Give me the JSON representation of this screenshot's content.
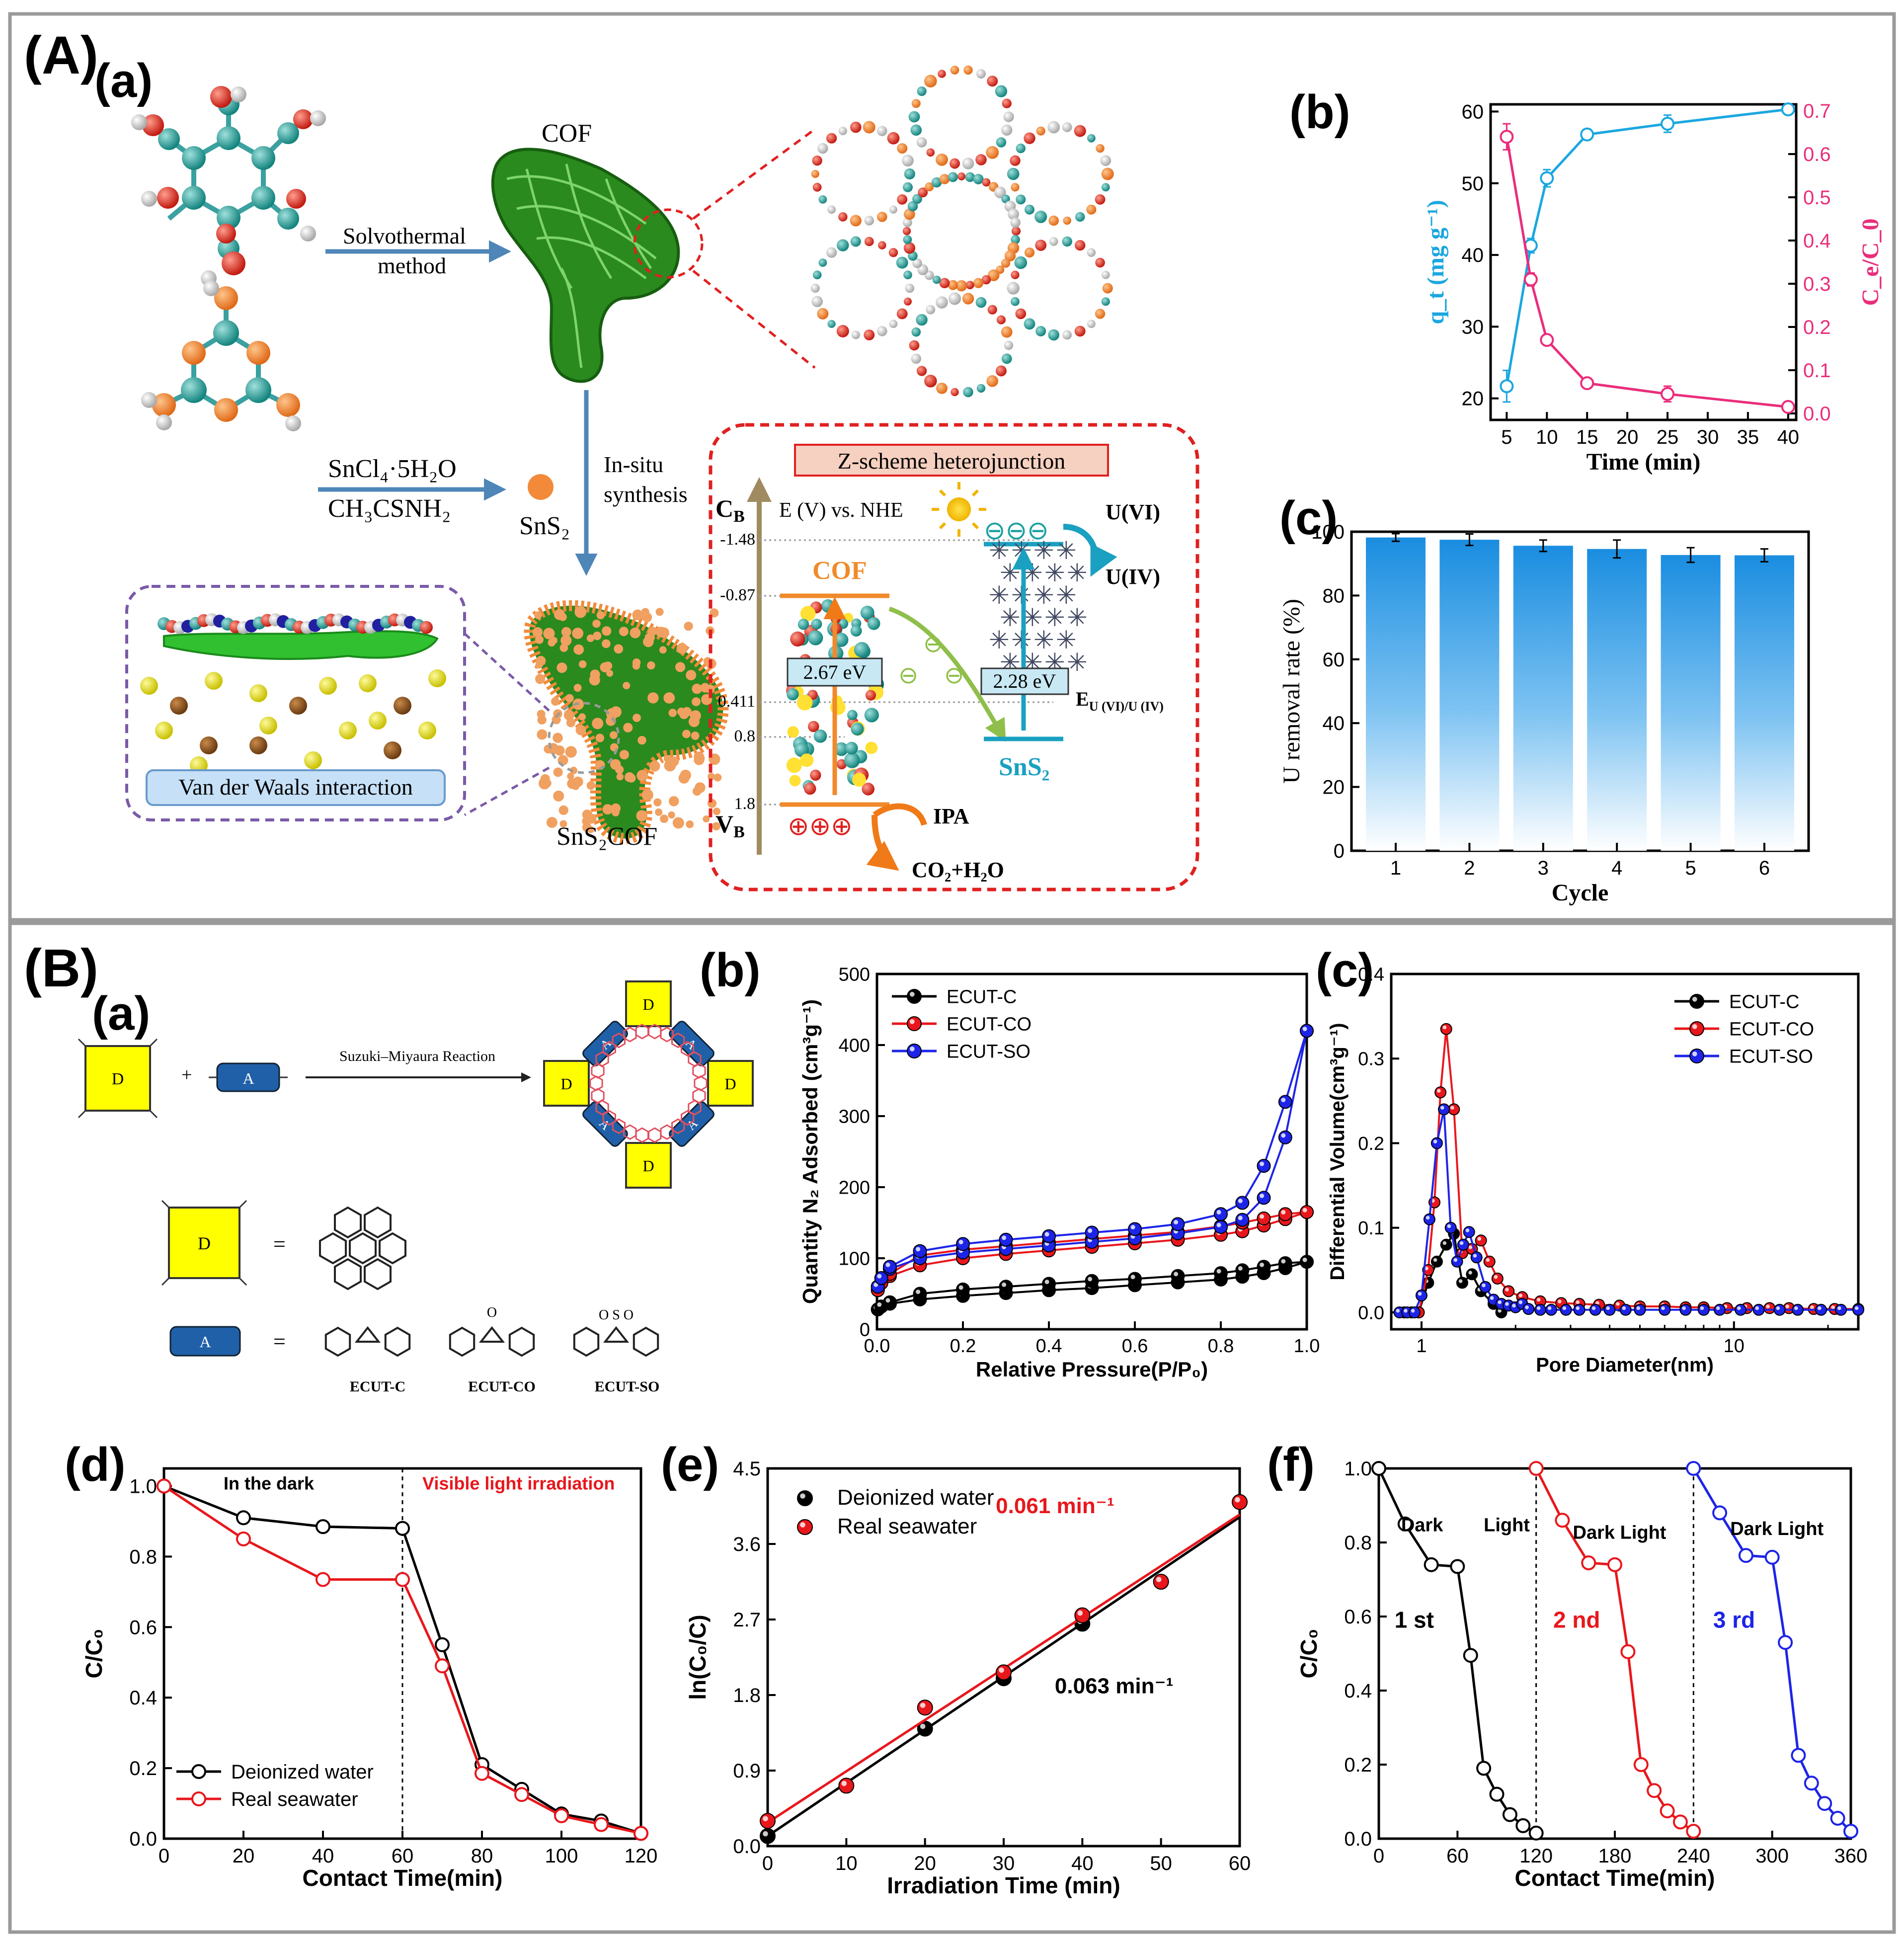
{
  "panel_labels": {
    "A": "(A)",
    "Aa": "(a)",
    "Ab": "(b)",
    "Ac": "(c)",
    "B": "(B)",
    "Ba": "(a)",
    "Bb": "(b)",
    "Bc": "(c)",
    "Bd": "(d)",
    "Be": "(e)",
    "Bf": "(f)"
  },
  "scheme_a": {
    "cof_label": "COF",
    "solvothermal_1": "Solvothermal",
    "solvothermal_2": "method",
    "reagent_1": "SnCl₄·5H₂O",
    "reagent_2": "CH₃CSNH₂",
    "sns2_label": "SnS₂",
    "insitu_1": "In-situ",
    "insitu_2": "synthesis",
    "vdw_label": "Van der Waals interaction",
    "sns2cof_label": "SnS₂COF",
    "zscheme_title": "Z-scheme heterojunction",
    "cb_label": "C_B",
    "vb_label": "V_B",
    "energy_axis": "E (V) vs. NHE",
    "energy_ticks": [
      "-1.48",
      "-0.87",
      "0.411",
      "0.8",
      "1.8"
    ],
    "cof_band": "COF",
    "cof_gap": "2.67 eV",
    "sns2_gap": "2.28 eV",
    "sns2_band": "SnS₂",
    "u6": "U(VI)",
    "u4": "U(IV)",
    "redox": "E U (VI)/U (IV)",
    "ipa": "IPA",
    "products": "CO₂+H₂O",
    "holes": "⊕⊕⊕",
    "electrons": "⊖⊖⊖"
  },
  "scheme_b": {
    "reaction": "Suzuki–Miyaura Reaction",
    "donor": "D",
    "acceptor": "A",
    "plus": "+",
    "equals": "=",
    "products": [
      "ECUT-C",
      "ECUT-CO",
      "ECUT-SO"
    ]
  },
  "chart_data": [
    {
      "id": "A_b",
      "type": "line",
      "title": "",
      "xlabel": "Time (min)",
      "ylabel_left": "q_t (mg g⁻¹)",
      "ylabel_right": "C_e/C_0",
      "xlim": [
        3,
        41
      ],
      "ylim_left": [
        17,
        61
      ],
      "ylim_right": [
        -0.015,
        0.715
      ],
      "x_ticks": [
        5,
        10,
        15,
        20,
        25,
        30,
        35,
        40
      ],
      "y_left_ticks": [
        20,
        30,
        40,
        50,
        60
      ],
      "y_right_ticks": [
        0.0,
        0.1,
        0.2,
        0.3,
        0.4,
        0.5,
        0.6,
        0.7
      ],
      "series": [
        {
          "name": "q_t",
          "axis": "left",
          "color": "#1ba7e0",
          "x": [
            5,
            8,
            10,
            15,
            25,
            40
          ],
          "y": [
            21.7,
            41.3,
            50.7,
            56.8,
            58.3,
            60.3
          ],
          "err": [
            2.2,
            1.0,
            1.2,
            0.6,
            1.2,
            0.3
          ]
        },
        {
          "name": "C_e/C_0",
          "axis": "right",
          "color": "#ea2d7b",
          "x": [
            5,
            8,
            10,
            15,
            25,
            40
          ],
          "y": [
            0.64,
            0.31,
            0.17,
            0.07,
            0.045,
            0.015
          ],
          "err": [
            0.03,
            0.015,
            0.012,
            0.006,
            0.018,
            0.005
          ]
        }
      ]
    },
    {
      "id": "A_c",
      "type": "bar",
      "xlabel": "Cycle",
      "ylabel": "U removal rate (%)",
      "ylim": [
        0,
        100
      ],
      "categories": [
        "1",
        "2",
        "3",
        "4",
        "5",
        "6"
      ],
      "values": [
        98.2,
        97.5,
        95.6,
        94.6,
        92.7,
        92.6
      ],
      "err": [
        1.2,
        1.8,
        1.8,
        2.8,
        2.3,
        2.0
      ],
      "y_ticks": [
        0,
        20,
        40,
        60,
        80,
        100
      ],
      "color": "#1a8de0"
    },
    {
      "id": "B_b",
      "type": "line",
      "xlabel": "Relative Pressure(P/P₀)",
      "ylabel": "Quantity N₂ Adsorbed (cm³g⁻¹)",
      "xlim": [
        0,
        1
      ],
      "ylim": [
        0,
        500
      ],
      "x_ticks": [
        "0.0",
        "0.2",
        "0.4",
        "0.6",
        "0.8",
        "1.0"
      ],
      "y_ticks": [
        0,
        100,
        200,
        300,
        400,
        500
      ],
      "legend": "top-left",
      "series": [
        {
          "name": "ECUT-C",
          "color": "#000000",
          "x": [
            0.002,
            0.01,
            0.03,
            0.1,
            0.2,
            0.3,
            0.4,
            0.5,
            0.6,
            0.7,
            0.8,
            0.85,
            0.9,
            0.95,
            1.0
          ],
          "ads": [
            28,
            32,
            36,
            42,
            47,
            51,
            55,
            58,
            62,
            66,
            70,
            74,
            79,
            86,
            95
          ],
          "des": [
            28,
            32,
            38,
            50,
            56,
            60,
            64,
            68,
            71,
            75,
            79,
            83,
            88,
            93,
            95
          ]
        },
        {
          "name": "ECUT-CO",
          "color": "#e8171c",
          "x": [
            0.002,
            0.01,
            0.03,
            0.1,
            0.2,
            0.3,
            0.4,
            0.5,
            0.6,
            0.7,
            0.8,
            0.85,
            0.9,
            0.95,
            1.0
          ],
          "ads": [
            55,
            65,
            75,
            90,
            100,
            106,
            111,
            116,
            121,
            126,
            133,
            138,
            146,
            155,
            165
          ],
          "des": [
            55,
            65,
            78,
            104,
            112,
            117,
            122,
            127,
            132,
            137,
            145,
            150,
            156,
            162,
            165
          ]
        },
        {
          "name": "ECUT-SO",
          "color": "#1d24e8",
          "x": [
            0.002,
            0.01,
            0.03,
            0.1,
            0.2,
            0.3,
            0.4,
            0.5,
            0.6,
            0.7,
            0.8,
            0.85,
            0.9,
            0.95,
            1.0
          ],
          "ads": [
            60,
            72,
            85,
            100,
            108,
            113,
            118,
            123,
            128,
            135,
            144,
            154,
            185,
            270,
            420
          ],
          "des": [
            60,
            72,
            88,
            110,
            120,
            126,
            131,
            136,
            141,
            148,
            162,
            178,
            230,
            320,
            420
          ]
        }
      ]
    },
    {
      "id": "B_c",
      "type": "line",
      "xscale": "log",
      "xlabel": "Pore Diameter(nm)",
      "ylabel": "Differential Volume(cm³g⁻¹)",
      "xlim": [
        0.8,
        25
      ],
      "ylim": [
        -0.02,
        0.4
      ],
      "x_ticks": [
        "1",
        "10"
      ],
      "y_ticks": [
        "0.0",
        "0.1",
        "0.2",
        "0.3",
        "0.4"
      ],
      "legend": "top-right",
      "series": [
        {
          "name": "ECUT-C",
          "color": "#000000",
          "x": [
            0.88,
            0.93,
            0.98,
            1.05,
            1.12,
            1.2,
            1.27,
            1.35,
            1.45,
            1.55,
            1.7,
            1.8
          ],
          "y": [
            0,
            0,
            0,
            0.035,
            0.06,
            0.08,
            0.093,
            0.035,
            0.045,
            0.025,
            0.01,
            0
          ]
        },
        {
          "name": "ECUT-CO",
          "color": "#e8171c",
          "x": [
            0.88,
            0.93,
            0.98,
            1.05,
            1.1,
            1.15,
            1.2,
            1.27,
            1.35,
            1.45,
            1.55,
            1.65,
            1.75,
            1.9,
            2.1,
            2.4,
            2.8,
            3.2,
            3.7,
            4.3,
            5,
            6,
            7,
            8,
            9.5,
            11,
            13,
            15,
            18,
            21,
            25
          ],
          "y": [
            0,
            0,
            0,
            0.05,
            0.13,
            0.26,
            0.335,
            0.24,
            0.07,
            0.075,
            0.085,
            0.06,
            0.04,
            0.025,
            0.018,
            0.013,
            0.011,
            0.01,
            0.009,
            0.008,
            0.007,
            0.007,
            0.006,
            0.006,
            0.005,
            0.005,
            0.005,
            0.005,
            0.004,
            0.004,
            0.004
          ]
        },
        {
          "name": "ECUT-SO",
          "color": "#1d24e8",
          "x": [
            0.85,
            0.9,
            0.95,
            1.0,
            1.06,
            1.12,
            1.18,
            1.24,
            1.3,
            1.36,
            1.42,
            1.5,
            1.6,
            1.7,
            1.8,
            1.9,
            2.0,
            2.1,
            2.2,
            2.4,
            2.6,
            2.9,
            3.2,
            3.6,
            4,
            4.5,
            5,
            6,
            7,
            8,
            9,
            10.5,
            12,
            14,
            16,
            19,
            22,
            25
          ],
          "y": [
            0,
            0,
            0,
            0.02,
            0.11,
            0.2,
            0.24,
            0.1,
            0.06,
            0.08,
            0.095,
            0.065,
            0.03,
            0.015,
            0.01,
            0.008,
            0.006,
            0.01,
            0.004,
            0.003,
            0.003,
            0.003,
            0.003,
            0.003,
            0.003,
            0.003,
            0.003,
            0.003,
            0.003,
            0.003,
            0.003,
            0.003,
            0.003,
            0.003,
            0.003,
            0.003,
            0.003,
            0.003
          ]
        }
      ]
    },
    {
      "id": "B_d",
      "type": "line",
      "xlabel": "Contact Time(min)",
      "ylabel": "C/C₀",
      "xlim": [
        0,
        120
      ],
      "ylim": [
        0,
        1.05
      ],
      "x_ticks": [
        0,
        20,
        40,
        60,
        80,
        100,
        120
      ],
      "y_ticks": [
        "0.0",
        "0.2",
        "0.4",
        "0.6",
        "0.8",
        "1.0"
      ],
      "legend": "bottom-left",
      "annotations": [
        "In the dark",
        "Visible light irradiation"
      ],
      "divider_x": 60,
      "series": [
        {
          "name": "Deionized water",
          "color": "#000000",
          "x": [
            0,
            20,
            40,
            60,
            70,
            80,
            90,
            100,
            110,
            120
          ],
          "y": [
            1.0,
            0.91,
            0.885,
            0.88,
            0.55,
            0.21,
            0.14,
            0.07,
            0.05,
            0.015
          ],
          "err": [
            0.01,
            0.01,
            0.012,
            0.01,
            0.012,
            0.01,
            0.008,
            0.008,
            0.008,
            0.005
          ]
        },
        {
          "name": "Real seawater",
          "color": "#e8171c",
          "x": [
            0,
            20,
            40,
            60,
            70,
            80,
            90,
            100,
            110,
            120
          ],
          "y": [
            1.0,
            0.85,
            0.735,
            0.735,
            0.49,
            0.185,
            0.125,
            0.065,
            0.04,
            0.015
          ],
          "err": [
            0.01,
            0.01,
            0.01,
            0.01,
            0.012,
            0.01,
            0.008,
            0.008,
            0.008,
            0.005
          ]
        }
      ]
    },
    {
      "id": "B_e",
      "type": "scatter",
      "xlabel": "Irradiation Time (min)",
      "ylabel": "ln(C₀/C)",
      "xlim": [
        0,
        60
      ],
      "ylim": [
        0,
        4.5
      ],
      "x_ticks": [
        0,
        10,
        20,
        30,
        40,
        50,
        60
      ],
      "y_ticks": [
        "0.0",
        "0.9",
        "1.8",
        "2.7",
        "3.6",
        "4.5"
      ],
      "legend": "top-left",
      "rate_labels": [
        "0.061 min⁻¹",
        "0.063 min⁻¹"
      ],
      "series": [
        {
          "name": "Deionized water",
          "color": "#000000",
          "x": [
            0,
            20,
            30,
            40
          ],
          "y": [
            0.12,
            1.4,
            2.0,
            2.65
          ],
          "fit": [
            0.12,
            3.92
          ]
        },
        {
          "name": "Real seawater",
          "color": "#e8171c",
          "x": [
            0,
            10,
            20,
            30,
            40,
            50,
            60
          ],
          "y": [
            0.3,
            0.72,
            1.65,
            2.07,
            2.75,
            3.15,
            4.1
          ],
          "fit": [
            0.28,
            3.95
          ]
        }
      ]
    },
    {
      "id": "B_f",
      "type": "line",
      "xlabel": "Contact Time(min)",
      "ylabel": "C/C₀",
      "xlim": [
        0,
        360
      ],
      "ylim": [
        0,
        1.0
      ],
      "x_ticks": [
        0,
        60,
        120,
        180,
        240,
        300,
        360
      ],
      "y_ticks": [
        "0.0",
        "0.2",
        "0.4",
        "0.6",
        "0.8",
        "1.0"
      ],
      "dividers": [
        120,
        240
      ],
      "cycle_labels": [
        "1 st",
        "2 nd",
        "3 rd"
      ],
      "phase_labels": [
        "Dark",
        "Light",
        "Dark Light",
        "Dark Light"
      ],
      "series": [
        {
          "name": "1 st",
          "color": "#000000",
          "x": [
            0,
            20,
            40,
            60,
            70,
            80,
            90,
            100,
            110,
            120
          ],
          "y": [
            1.0,
            0.85,
            0.74,
            0.735,
            0.495,
            0.19,
            0.12,
            0.065,
            0.035,
            0.015
          ]
        },
        {
          "name": "2 nd",
          "color": "#e8171c",
          "x": [
            120,
            140,
            160,
            180,
            190,
            200,
            210,
            220,
            230,
            240
          ],
          "y": [
            1.0,
            0.86,
            0.745,
            0.74,
            0.505,
            0.2,
            0.13,
            0.075,
            0.045,
            0.02
          ]
        },
        {
          "name": "3 rd",
          "color": "#1d24e8",
          "x": [
            240,
            260,
            280,
            300,
            310,
            320,
            330,
            340,
            350,
            360
          ],
          "y": [
            1.0,
            0.88,
            0.765,
            0.76,
            0.53,
            0.225,
            0.15,
            0.095,
            0.055,
            0.02
          ]
        }
      ]
    }
  ]
}
